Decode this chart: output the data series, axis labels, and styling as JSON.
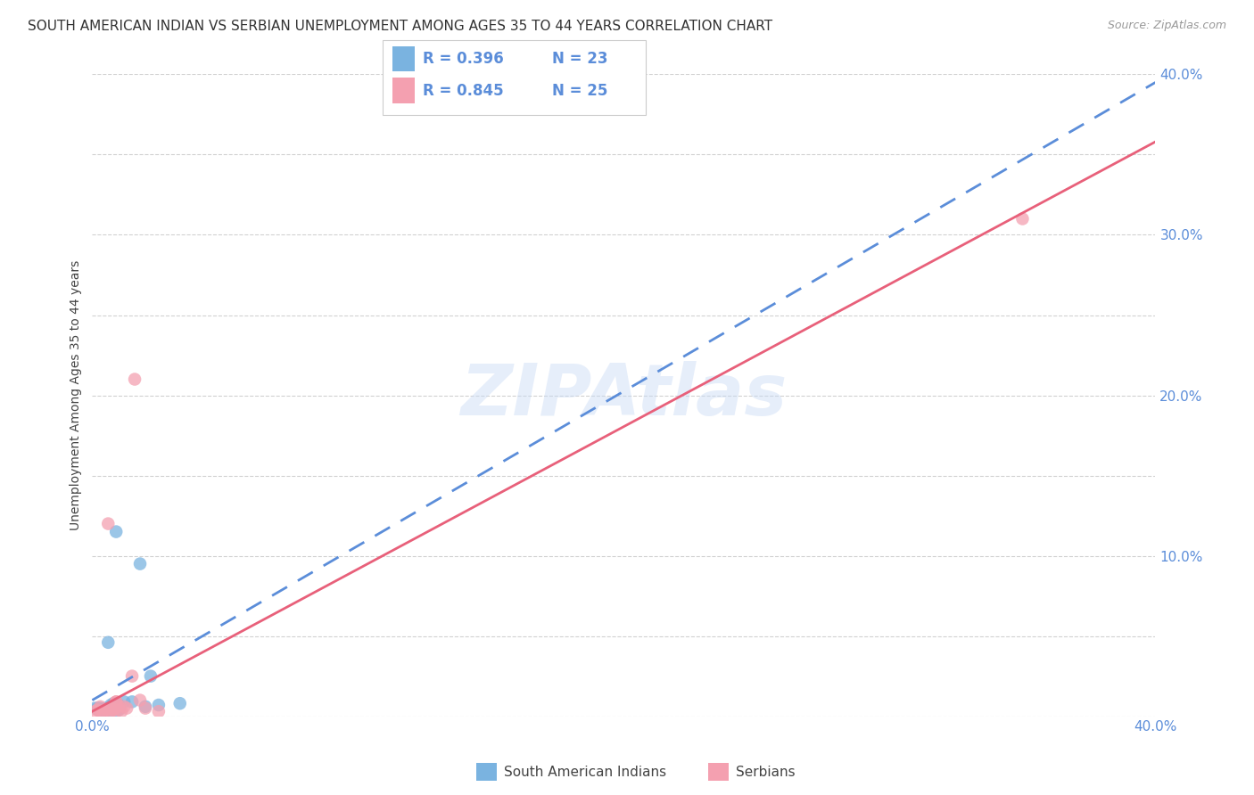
{
  "title": "SOUTH AMERICAN INDIAN VS SERBIAN UNEMPLOYMENT AMONG AGES 35 TO 44 YEARS CORRELATION CHART",
  "source": "Source: ZipAtlas.com",
  "ylabel": "Unemployment Among Ages 35 to 44 years",
  "xlim": [
    0.0,
    0.4
  ],
  "ylim": [
    0.0,
    0.4
  ],
  "xticks": [
    0.0,
    0.05,
    0.1,
    0.15,
    0.2,
    0.25,
    0.3,
    0.35,
    0.4
  ],
  "yticks": [
    0.0,
    0.05,
    0.1,
    0.15,
    0.2,
    0.25,
    0.3,
    0.35,
    0.4
  ],
  "xticklabels_show": {
    "0.0": "0.0%",
    "0.4": "40.0%"
  },
  "yticklabels_show": {
    "0.1": "10.0%",
    "0.2": "20.0%",
    "0.3": "30.0%",
    "0.4": "40.0%"
  },
  "grid_color": "#cccccc",
  "background_color": "#ffffff",
  "watermark": "ZIPAtlas",
  "color_blue": "#7ab3e0",
  "color_pink": "#f4a0b0",
  "line_blue_color": "#5b8dd9",
  "line_pink_color": "#e8607a",
  "tick_color": "#5b8dd9",
  "legend_label1": "South American Indians",
  "legend_label2": "Serbians",
  "legend_r1": "R = 0.396",
  "legend_n1": "N = 23",
  "legend_r2": "R = 0.845",
  "legend_n2": "N = 25",
  "blue_points": [
    [
      0.001,
      0.005
    ],
    [
      0.002,
      0.005
    ],
    [
      0.003,
      0.003
    ],
    [
      0.003,
      0.005
    ],
    [
      0.004,
      0.004
    ],
    [
      0.005,
      0.003
    ],
    [
      0.005,
      0.005
    ],
    [
      0.006,
      0.003
    ],
    [
      0.006,
      0.046
    ],
    [
      0.007,
      0.007
    ],
    [
      0.008,
      0.004
    ],
    [
      0.008,
      0.008
    ],
    [
      0.009,
      0.115
    ],
    [
      0.009,
      0.003
    ],
    [
      0.01,
      0.004
    ],
    [
      0.01,
      0.007
    ],
    [
      0.012,
      0.009
    ],
    [
      0.015,
      0.009
    ],
    [
      0.018,
      0.095
    ],
    [
      0.02,
      0.006
    ],
    [
      0.022,
      0.025
    ],
    [
      0.025,
      0.007
    ],
    [
      0.033,
      0.008
    ]
  ],
  "pink_points": [
    [
      0.001,
      0.003
    ],
    [
      0.002,
      0.004
    ],
    [
      0.003,
      0.003
    ],
    [
      0.003,
      0.006
    ],
    [
      0.004,
      0.003
    ],
    [
      0.005,
      0.004
    ],
    [
      0.006,
      0.12
    ],
    [
      0.006,
      0.004
    ],
    [
      0.007,
      0.005
    ],
    [
      0.007,
      0.003
    ],
    [
      0.008,
      0.004
    ],
    [
      0.008,
      0.004
    ],
    [
      0.009,
      0.009
    ],
    [
      0.009,
      0.009
    ],
    [
      0.01,
      0.006
    ],
    [
      0.01,
      0.004
    ],
    [
      0.011,
      0.003
    ],
    [
      0.012,
      0.006
    ],
    [
      0.013,
      0.005
    ],
    [
      0.015,
      0.025
    ],
    [
      0.016,
      0.21
    ],
    [
      0.018,
      0.01
    ],
    [
      0.02,
      0.005
    ],
    [
      0.35,
      0.31
    ],
    [
      0.025,
      0.003
    ]
  ],
  "blue_line": [
    [
      0.0,
      0.01
    ],
    [
      0.4,
      0.395
    ]
  ],
  "pink_line": [
    [
      0.0,
      0.003
    ],
    [
      0.4,
      0.358
    ]
  ],
  "title_fontsize": 11,
  "axis_label_fontsize": 10,
  "tick_fontsize": 11,
  "source_fontsize": 9,
  "point_size": 110
}
